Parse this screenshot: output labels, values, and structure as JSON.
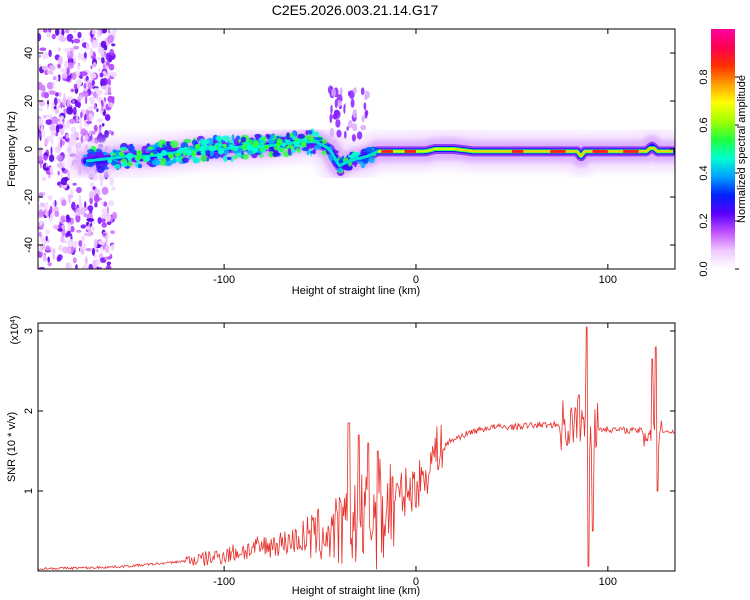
{
  "title": "C2E5.2026.003.21.14.G17",
  "chart_data": [
    {
      "type": "heatmap",
      "name": "spectrogram",
      "xlabel": "Height of straight line (km)",
      "ylabel": "Frequency (Hz)",
      "xlim": [
        -197,
        135
      ],
      "ylim": [
        -50,
        50
      ],
      "xticks": [
        -100,
        0,
        100
      ],
      "xtick_labels": [
        "-100",
        "0",
        "100"
      ],
      "yticks": [
        -40,
        -20,
        0,
        20,
        40
      ],
      "ytick_labels": [
        "-40",
        "-20",
        "0",
        "20",
        "40"
      ],
      "colorbar": {
        "label": "Normalized spectral amplitude",
        "range": [
          0,
          1
        ],
        "ticks": [
          0.0,
          0.2,
          0.4,
          0.6,
          0.8
        ],
        "tick_labels": [
          "0.0",
          "0.2",
          "0.4",
          "0.6",
          "0.8"
        ],
        "colors": [
          "#ffffff",
          "#f0c8ff",
          "#c050ff",
          "#5a00ff",
          "#0020ff",
          "#00a0ff",
          "#00ffd0",
          "#20ff40",
          "#a0ff00",
          "#ffff00",
          "#ffa000",
          "#ff3000",
          "#ff0050",
          "#ff00a0"
        ]
      },
      "ridge": {
        "x": [
          -172,
          -160,
          -150,
          -140,
          -130,
          -120,
          -110,
          -100,
          -90,
          -80,
          -70,
          -60,
          -52,
          -45,
          -40,
          -35,
          -30,
          -25,
          -20,
          -15,
          -10,
          -5,
          0,
          5,
          10,
          20,
          30,
          40,
          50,
          60,
          70,
          80,
          84,
          86,
          88,
          90,
          100,
          110,
          120,
          123,
          126,
          130,
          135
        ],
        "y": [
          -5,
          -4,
          -3,
          -3,
          -2,
          -1,
          0,
          0,
          1,
          1,
          2,
          3,
          3,
          0,
          -7,
          -5,
          -4,
          -3,
          -1,
          -1,
          -1,
          -1,
          -1,
          -1,
          0,
          0,
          -1,
          -1,
          -1,
          -1,
          -1,
          -1,
          -1,
          -3,
          -1,
          -1,
          -1,
          -1,
          -1,
          1,
          -1,
          -1,
          -1
        ]
      },
      "noise_region_x": [
        -197,
        -157
      ]
    },
    {
      "type": "line",
      "name": "snr",
      "xlabel": "Height of straight line (km)",
      "ylabel": "SNR (10 * v/v)",
      "scale_label": "(x10",
      "scale_exponent": "4",
      "scale_suffix": ")",
      "xlim": [
        -197,
        135
      ],
      "ylim": [
        0,
        3.1
      ],
      "xticks": [
        -100,
        0,
        100
      ],
      "xtick_labels": [
        "-100",
        "0",
        "100"
      ],
      "yticks": [
        1,
        2,
        3
      ],
      "ytick_labels": [
        "1",
        "2",
        "3"
      ],
      "color": "#e8302a",
      "envelope": {
        "x": [
          -197,
          -170,
          -150,
          -130,
          -110,
          -100,
          -90,
          -80,
          -70,
          -60,
          -50,
          -40,
          -35,
          -30,
          -25,
          -20,
          -15,
          -10,
          -5,
          0,
          5,
          10,
          20,
          30,
          40,
          50,
          60,
          70,
          80,
          84,
          88,
          90,
          95,
          100,
          110,
          120,
          125,
          135
        ],
        "y": [
          0.03,
          0.04,
          0.06,
          0.1,
          0.15,
          0.2,
          0.25,
          0.3,
          0.35,
          0.4,
          0.45,
          0.5,
          0.55,
          0.6,
          0.65,
          0.7,
          0.8,
          0.9,
          1.0,
          1.05,
          1.2,
          1.5,
          1.65,
          1.75,
          1.8,
          1.8,
          1.82,
          1.83,
          1.82,
          1.8,
          1.78,
          1.78,
          1.78,
          1.77,
          1.76,
          1.75,
          1.75,
          1.74
        ]
      },
      "spikes": [
        {
          "x": -35,
          "y": 1.85
        },
        {
          "x": -30,
          "y": 1.7
        },
        {
          "x": -25,
          "y": 1.6
        },
        {
          "x": -20,
          "y": 1.5
        },
        {
          "x": 85,
          "y": 2.2
        },
        {
          "x": 89,
          "y": 3.05
        },
        {
          "x": 90,
          "y": 0.06
        },
        {
          "x": 92,
          "y": 0.5
        },
        {
          "x": 123,
          "y": 2.65
        },
        {
          "x": 125,
          "y": 2.8
        },
        {
          "x": 126,
          "y": 1.0
        }
      ]
    }
  ]
}
